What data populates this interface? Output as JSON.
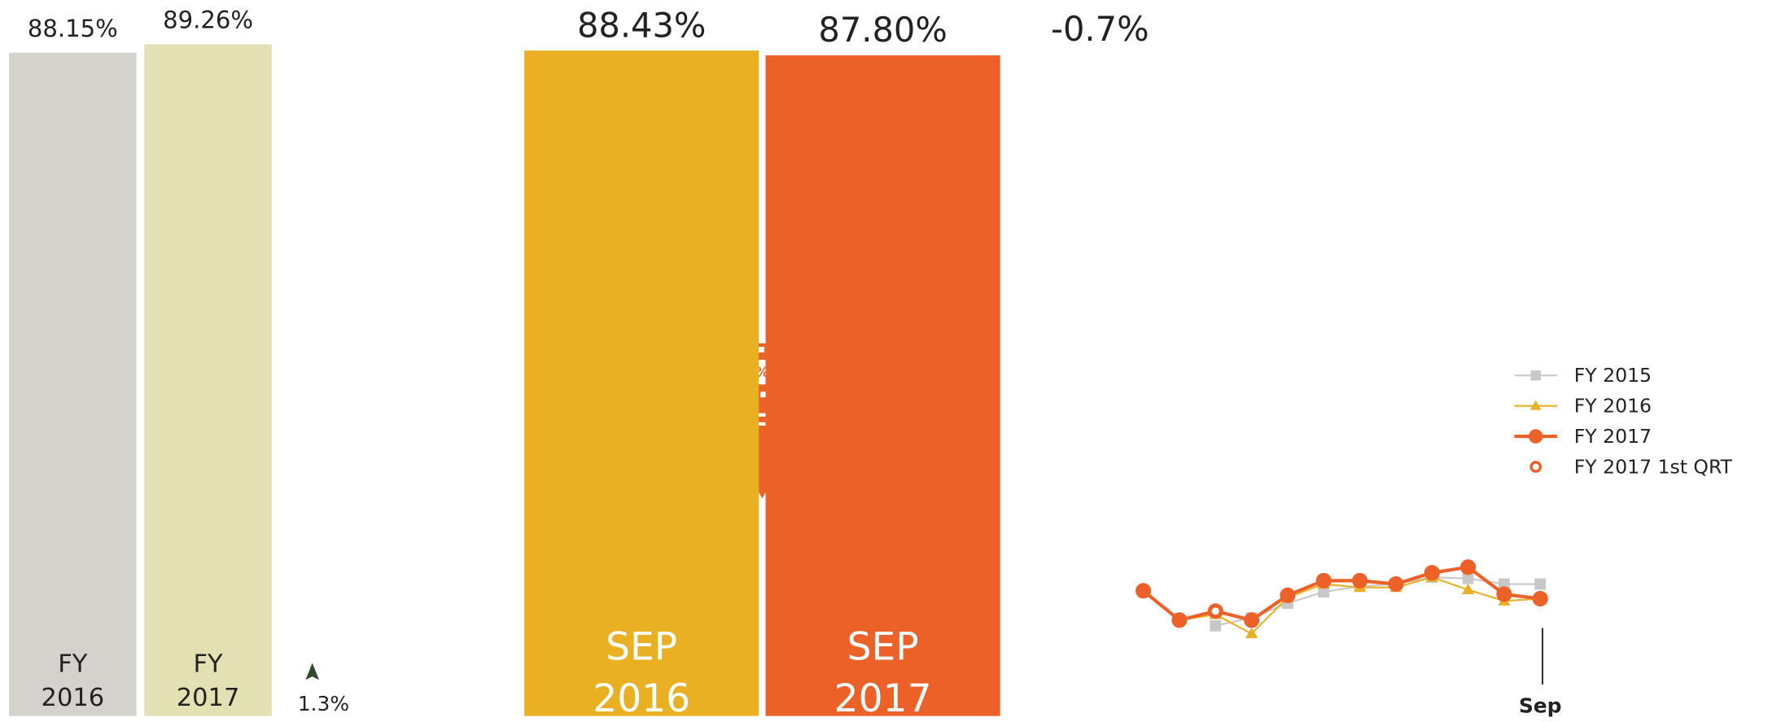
{
  "chart_data": [
    {
      "type": "bar",
      "categories": [
        "FY 2016",
        "FY 2017"
      ],
      "values": [
        88.15,
        89.26
      ],
      "value_labels": [
        "88.15%",
        "89.26%"
      ],
      "colors": [
        "#d3d2cc",
        "#e3e0b4"
      ],
      "ylim": [
        0,
        95
      ],
      "annotation": "1.3%"
    },
    {
      "type": "bar",
      "categories": [
        "SEP 2016",
        "SEP 2017"
      ],
      "values": [
        88.43,
        87.8
      ],
      "value_labels": [
        "88.43%",
        "87.80%"
      ],
      "colors": [
        "#e8b022",
        "#ec6128"
      ],
      "ylim": [
        0,
        95
      ],
      "annotation": "-0.7%"
    },
    {
      "type": "line",
      "categories": [
        null,
        null,
        null,
        null,
        null,
        null,
        null,
        null,
        null,
        null,
        null,
        "Sep"
      ],
      "ylim": [
        75,
        110
      ],
      "legend": "right",
      "series": [
        {
          "name": "FY 2015",
          "color": "#c8c8c8",
          "marker": "square",
          "values": [
            null,
            null,
            83.5,
            84.2,
            85.5,
            86.5,
            87.0,
            87.2,
            87.8,
            87.7,
            87.2,
            87.2
          ]
        },
        {
          "name": "FY 2016",
          "color": "#e8b022",
          "marker": "triangle",
          "values": [
            86.6,
            84.0,
            84.5,
            82.8,
            86.0,
            87.2,
            86.9,
            86.9,
            87.8,
            86.7,
            85.7,
            85.9
          ]
        },
        {
          "name": "FY 2017",
          "color": "#ec6128",
          "marker": "circle",
          "values": [
            86.6,
            84.0,
            84.8,
            84.0,
            86.2,
            87.5,
            87.5,
            87.2,
            88.2,
            88.7,
            86.3,
            85.9
          ]
        },
        {
          "name": "FY 2017 1st QRT",
          "color": "#ec6128",
          "marker": "ring",
          "line": false,
          "values": [
            null,
            null,
            84.8,
            null,
            null,
            null,
            null,
            null,
            null,
            null,
            null,
            null
          ]
        }
      ]
    }
  ]
}
